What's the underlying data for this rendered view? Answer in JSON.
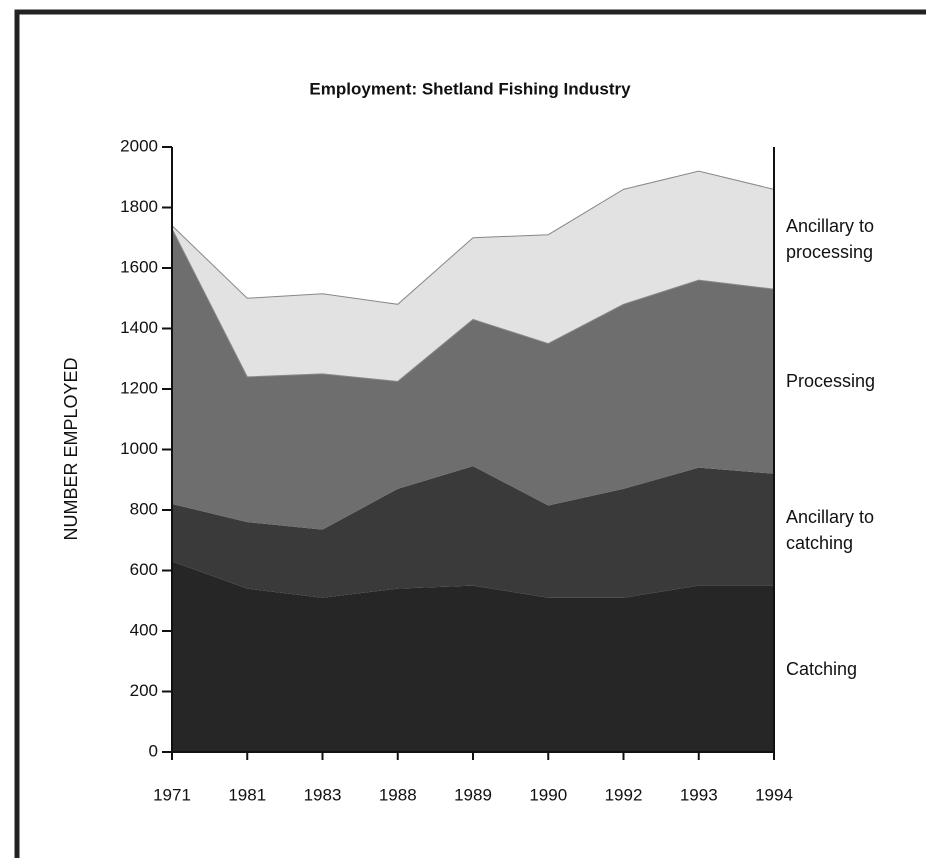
{
  "chart_data": {
    "type": "stacked_area",
    "title": "Employment: Shetland Fishing Industry",
    "y_label": "NUMBER EMPLOYED",
    "categories": [
      "1971",
      "1981",
      "1983",
      "1988",
      "1989",
      "1990",
      "1992",
      "1993",
      "1994"
    ],
    "series": [
      {
        "name": "Catching",
        "color": "#262626",
        "values": [
          630,
          540,
          510,
          540,
          550,
          510,
          510,
          550,
          550
        ]
      },
      {
        "name": "Ancillary to catching",
        "color": "#3a3a3a",
        "values": [
          190,
          220,
          225,
          330,
          395,
          305,
          360,
          390,
          370
        ]
      },
      {
        "name": "Processing",
        "color": "#6e6e6e",
        "values": [
          910,
          480,
          515,
          355,
          485,
          535,
          610,
          620,
          610
        ]
      },
      {
        "name": "Ancillary to processing",
        "color": "#e2e2e2",
        "values": [
          10,
          260,
          265,
          255,
          270,
          360,
          380,
          360,
          330
        ]
      }
    ],
    "ylim": [
      0,
      2000
    ],
    "yticks": [
      0,
      200,
      400,
      600,
      800,
      1000,
      1200,
      1400,
      1600,
      1800,
      2000
    ]
  }
}
